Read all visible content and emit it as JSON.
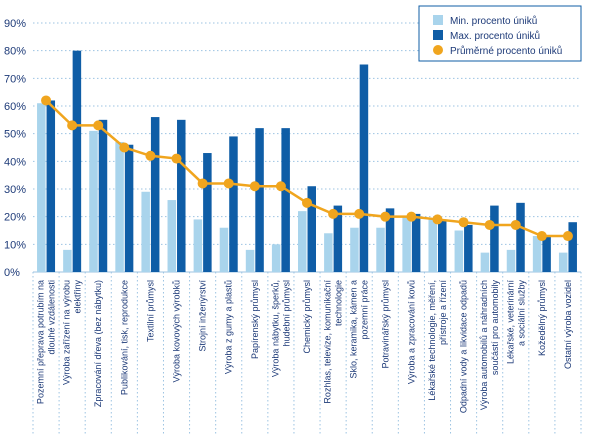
{
  "colors": {
    "min": "#a9d4ec",
    "max": "#0f5da6",
    "avg": "#f0a51e",
    "axis_text": "#1d3a78",
    "grid": "#9cc3e2"
  },
  "chart_data": {
    "type": "bar",
    "title": "",
    "xlabel": "",
    "ylabel": "",
    "ylim": [
      0,
      90
    ],
    "yticks": [
      "0%",
      "10%",
      "20%",
      "30%",
      "40%",
      "50%",
      "60%",
      "70%",
      "80%",
      "90%"
    ],
    "legend_position": "top-right",
    "grid": true,
    "categories": [
      [
        "Pozemní přeprava potrubím na",
        "dlouhé vzdálenosti"
      ],
      [
        "Výroba zařízení na výrobu",
        "elektřiny"
      ],
      [
        "Zpracování dřeva (bez nábytku)"
      ],
      [
        "Publikování, tisk, reprodukce"
      ],
      [
        "Textilní průmysl"
      ],
      [
        "Výroba kovových výrobků"
      ],
      [
        "Strojní inženýrství"
      ],
      [
        "Výroba z gumy a plastů"
      ],
      [
        "Papírenský průmysl"
      ],
      [
        "Výroba nábytku, šperků,",
        "hudební průmysl"
      ],
      [
        "Chemický průmysl"
      ],
      [
        "Rozhlas, televize, komunikační",
        "technologie"
      ],
      [
        "Sklo, keramika, kámen a",
        "pozemní práce"
      ],
      [
        "Potravinářský průmysl"
      ],
      [
        "Výroba a zpracování kovů"
      ],
      [
        "Lékařské technologie, měření,",
        "přístroje a řízení"
      ],
      [
        "Odpadní vody a likvidace odpadů"
      ],
      [
        "Výroba automobilů a náhradních",
        "součástí pro automobily"
      ],
      [
        "Lékařské, veterinární",
        "a sociální služby"
      ],
      [
        "Kožedělný průmysl"
      ],
      [
        "Ostatní výroba vozidel"
      ]
    ],
    "series": [
      {
        "name": "Min. procento úniků",
        "type": "bar",
        "color": "#a9d4ec",
        "values": [
          61,
          8,
          51,
          47,
          29,
          26,
          19,
          16,
          8,
          10,
          22,
          14,
          16,
          16,
          20,
          19,
          15,
          7,
          8,
          13,
          7
        ]
      },
      {
        "name": "Max. procento úniků",
        "type": "bar",
        "color": "#0f5da6",
        "values": [
          62,
          80,
          55,
          46,
          56,
          55,
          43,
          49,
          52,
          52,
          31,
          24,
          75,
          23,
          21,
          19,
          17,
          24,
          25,
          13,
          18
        ]
      },
      {
        "name": "Průměrné procento úniků",
        "type": "line",
        "color": "#f0a51e",
        "values": [
          62,
          53,
          53,
          45,
          42,
          41,
          32,
          32,
          31,
          31,
          25,
          21,
          21,
          20,
          20,
          19,
          18,
          17,
          17,
          13,
          13
        ]
      }
    ]
  }
}
